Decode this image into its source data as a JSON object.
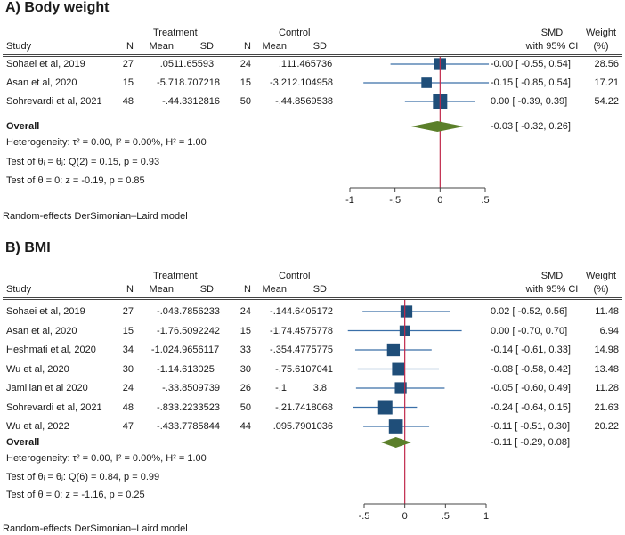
{
  "chart_data": [
    {
      "type": "forest",
      "panel_title": "A)  Body weight",
      "headers": {
        "treatment": "Treatment",
        "control": "Control",
        "study": "Study",
        "n": "N",
        "mean": "Mean",
        "sd": "SD",
        "smd_line1": "SMD",
        "smd_line2": "with 95% CI",
        "weight_line1": "Weight",
        "weight_line2": "(%)"
      },
      "studies": [
        {
          "study": "Sohaei et al, 2019",
          "t_n": "27",
          "t_mean": ".05",
          "t_sd": "11.65593",
          "c_n": "24",
          "c_mean": ".1",
          "c_sd": "11.465736",
          "smd": -0.0,
          "lo": -0.55,
          "hi": 0.54,
          "ci_text": "-0.00 [ -0.55,  0.54]",
          "weight": "28.56"
        },
        {
          "study": "Asan et al, 2020",
          "t_n": "15",
          "t_mean": "-5.7",
          "t_sd": "18.707218",
          "c_n": "15",
          "c_mean": "-3.2",
          "c_sd": "12.104958",
          "smd": -0.15,
          "lo": -0.85,
          "hi": 0.54,
          "ci_text": "-0.15 [ -0.85,  0.54]",
          "weight": "17.21"
        },
        {
          "study": "Sohrevardi et al, 2021",
          "t_n": "48",
          "t_mean": "-.4",
          "t_sd": "4.3312816",
          "c_n": "50",
          "c_mean": "-.4",
          "c_sd": "4.8569538",
          "smd": 0.0,
          "lo": -0.39,
          "hi": 0.39,
          "ci_text": "0.00 [ -0.39,  0.39]",
          "weight": "54.22"
        }
      ],
      "overall": {
        "label": "Overall",
        "smd": -0.03,
        "lo": -0.32,
        "hi": 0.26,
        "ci_text": "-0.03 [ -0.32,  0.26]"
      },
      "heterogeneity": "Heterogeneity: τ² = 0.00, I² = 0.00%, H² = 1.00",
      "test_groups": "Test of θᵢ = θⱼ: Q(2) = 0.15, p = 0.93",
      "test_zero": "Test of θ = 0: z = -0.19, p = 0.85",
      "xlim": [
        -1,
        0.5
      ],
      "ticks": [
        -1,
        -0.5,
        0,
        0.5
      ],
      "tick_labels": [
        "-1",
        "-.5",
        "0",
        ".5"
      ],
      "model_note": "Random-effects DerSimonian–Laird model"
    },
    {
      "type": "forest",
      "panel_title": "B)  BMI",
      "headers": {
        "treatment": "Treatment",
        "control": "Control",
        "study": "Study",
        "n": "N",
        "mean": "Mean",
        "sd": "SD",
        "smd_line1": "SMD",
        "smd_line2": "with 95% CI",
        "weight_line1": "Weight",
        "weight_line2": "(%)"
      },
      "studies": [
        {
          "study": "Sohaei et al, 2019",
          "t_n": "27",
          "t_mean": "-.04",
          "t_sd": "3.7856233",
          "c_n": "24",
          "c_mean": "-.14",
          "c_sd": "4.6405172",
          "smd": 0.02,
          "lo": -0.52,
          "hi": 0.56,
          "ci_text": "0.02 [ -0.52,  0.56]",
          "weight": "11.48"
        },
        {
          "study": "Asan et al, 2020",
          "t_n": "15",
          "t_mean": "-1.7",
          "t_sd": "6.5092242",
          "c_n": "15",
          "c_mean": "-1.7",
          "c_sd": "4.4575778",
          "smd": 0.0,
          "lo": -0.7,
          "hi": 0.7,
          "ci_text": "0.00 [ -0.70,  0.70]",
          "weight": "6.94"
        },
        {
          "study": "Heshmati et al, 2020",
          "t_n": "34",
          "t_mean": "-1.02",
          "t_sd": "4.9656117",
          "c_n": "33",
          "c_mean": "-.35",
          "c_sd": "4.4775775",
          "smd": -0.14,
          "lo": -0.61,
          "hi": 0.33,
          "ci_text": "-0.14 [ -0.61,  0.33]",
          "weight": "14.98"
        },
        {
          "study": "Wu et al, 2020",
          "t_n": "30",
          "t_mean": "-1.1",
          "t_sd": "4.613025",
          "c_n": "30",
          "c_mean": "-.7",
          "c_sd": "5.6107041",
          "smd": -0.08,
          "lo": -0.58,
          "hi": 0.42,
          "ci_text": "-0.08 [ -0.58,  0.42]",
          "weight": "13.48"
        },
        {
          "study": "Jamilian et al 2020",
          "t_n": "24",
          "t_mean": "-.3",
          "t_sd": "3.8509739",
          "c_n": "26",
          "c_mean": "-.1",
          "c_sd": "3.8",
          "smd": -0.05,
          "lo": -0.6,
          "hi": 0.49,
          "ci_text": "-0.05 [ -0.60,  0.49]",
          "weight": "11.28"
        },
        {
          "study": "Sohrevardi et al, 2021",
          "t_n": "48",
          "t_mean": "-.83",
          "t_sd": "3.2233523",
          "c_n": "50",
          "c_mean": "-.2",
          "c_sd": "1.7418068",
          "smd": -0.24,
          "lo": -0.64,
          "hi": 0.15,
          "ci_text": "-0.24 [ -0.64,  0.15]",
          "weight": "21.63"
        },
        {
          "study": "Wu et al, 2022",
          "t_n": "47",
          "t_mean": "-.43",
          "t_sd": "3.7785844",
          "c_n": "44",
          "c_mean": ".09",
          "c_sd": "5.7901036",
          "smd": -0.11,
          "lo": -0.51,
          "hi": 0.3,
          "ci_text": "-0.11 [ -0.51,  0.30]",
          "weight": "20.22"
        }
      ],
      "overall": {
        "label": "Overall",
        "smd": -0.11,
        "lo": -0.29,
        "hi": 0.08,
        "ci_text": "-0.11 [ -0.29,  0.08]"
      },
      "heterogeneity": "Heterogeneity: τ² = 0.00, I² = 0.00%, H² = 1.00",
      "test_groups": "Test of θᵢ = θⱼ: Q(6) = 0.84, p = 0.99",
      "test_zero": "Test of θ = 0: z = -1.16, p = 0.25",
      "xlim": [
        -0.5,
        1
      ],
      "ticks": [
        -0.5,
        0,
        0.5,
        1
      ],
      "tick_labels": [
        "-.5",
        "0",
        ".5",
        "1"
      ],
      "model_note": "Random-effects DerSimonian–Laird model"
    }
  ],
  "colors": {
    "marker": "#1f4e79",
    "ci_line": "#3a6fa8",
    "diamond": "#5b7f2a",
    "null_line": "#c0284a",
    "axis": "#444444"
  }
}
